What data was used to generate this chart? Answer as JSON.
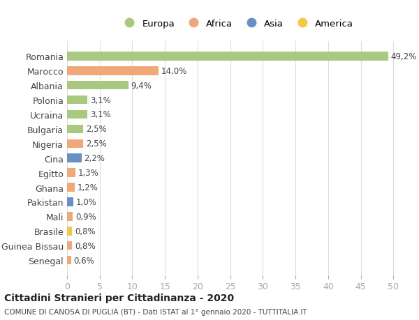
{
  "countries": [
    "Romania",
    "Marocco",
    "Albania",
    "Polonia",
    "Ucraina",
    "Bulgaria",
    "Nigeria",
    "Cina",
    "Egitto",
    "Ghana",
    "Pakistan",
    "Mali",
    "Brasile",
    "Guinea Bissau",
    "Senegal"
  ],
  "values": [
    49.2,
    14.0,
    9.4,
    3.1,
    3.1,
    2.5,
    2.5,
    2.2,
    1.3,
    1.2,
    1.0,
    0.9,
    0.8,
    0.8,
    0.6
  ],
  "labels": [
    "49,2%",
    "14,0%",
    "9,4%",
    "3,1%",
    "3,1%",
    "2,5%",
    "2,5%",
    "2,2%",
    "1,3%",
    "1,2%",
    "1,0%",
    "0,9%",
    "0,8%",
    "0,8%",
    "0,6%"
  ],
  "colors": [
    "#a8c97f",
    "#f0a878",
    "#a8c97f",
    "#a8c97f",
    "#a8c97f",
    "#a8c97f",
    "#f0a878",
    "#6a8fc4",
    "#f0a878",
    "#f0a878",
    "#6a8fc4",
    "#f0a878",
    "#f5c842",
    "#f0a878",
    "#f0a878"
  ],
  "legend_labels": [
    "Europa",
    "Africa",
    "Asia",
    "America"
  ],
  "legend_colors": [
    "#a8c97f",
    "#f0a878",
    "#6a8fc4",
    "#f5c842"
  ],
  "title": "Cittadini Stranieri per Cittadinanza - 2020",
  "subtitle": "COMUNE DI CANOSA DI PUGLIA (BT) - Dati ISTAT al 1° gennaio 2020 - TUTTITALIA.IT",
  "xlim": [
    0,
    52
  ],
  "xticks": [
    0,
    5,
    10,
    15,
    20,
    25,
    30,
    35,
    40,
    45,
    50
  ],
  "background_color": "#ffffff",
  "grid_color": "#dddddd"
}
